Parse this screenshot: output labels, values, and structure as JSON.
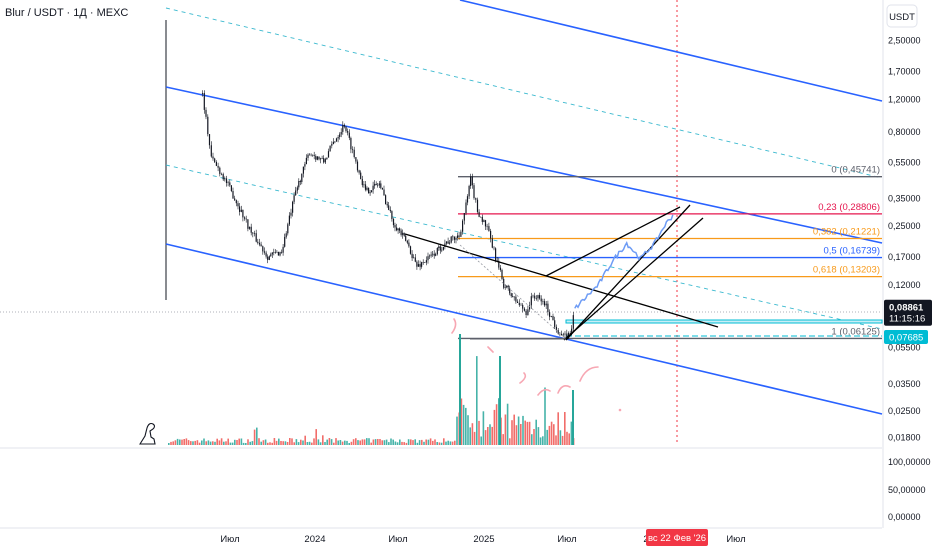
{
  "symbol": {
    "title": "Blur / USDT · 1Д · MEXC"
  },
  "price_axis": {
    "currency": "USDT",
    "ticks": [
      "2,50000",
      "1,70000",
      "1,20000",
      "0,80000",
      "0,55000",
      "0,35000",
      "0,25000",
      "0,17000",
      "0,12000",
      "0,05500",
      "0,03500",
      "0,02500",
      "0,01800"
    ],
    "current_price": "0,08861",
    "countdown": "11:15:16",
    "line_price": "0,07685"
  },
  "volume_axis": {
    "ticks": [
      "100,00000",
      "50,00000",
      "0,00000"
    ]
  },
  "time_axis": {
    "labels": [
      "Июл",
      "2024",
      "Июл",
      "2025",
      "Июл",
      "2",
      "Июл"
    ],
    "cursor_label": "вс 22 Фев '26"
  },
  "fib_levels": [
    {
      "label": "0 (0,45741)",
      "color": "#5d606b"
    },
    {
      "label": "0,23 (0,28806)",
      "color": "#e5164e"
    },
    {
      "label": "0,382 (0,21221)",
      "color": "#f89a1a"
    },
    {
      "label": "0,5 (0,16739)",
      "color": "#2962ff"
    },
    {
      "label": "0,618 (0,13203)",
      "color": "#f89a1a"
    },
    {
      "label": "1 (0,06125)",
      "color": "#5d606b"
    }
  ],
  "colors": {
    "channel": "#2962ff",
    "channel_mid": "#3bb9cf",
    "candles": "#131722",
    "projection": "#6e9cf5",
    "volume_up": "#26a69a",
    "volume_down": "#ef5350",
    "cursor_line": "#f23645",
    "annotation": "#f7a7b3",
    "current_price_tag": "#131722",
    "line_price_tag": "#00bcd4"
  },
  "chart_data": {
    "type": "candlestick",
    "title": "Blur / USDT · 1Д · MEXC",
    "y_scale": "log",
    "ylim": [
      0.016,
      3.2
    ],
    "x_range": [
      "2023-04",
      "2026-08"
    ],
    "close_series": [
      {
        "date": "2023-05-01",
        "value": 1.28
      },
      {
        "date": "2023-05-20",
        "value": 0.58
      },
      {
        "date": "2023-06-15",
        "value": 0.46
      },
      {
        "date": "2023-07-10",
        "value": 0.35
      },
      {
        "date": "2023-08-15",
        "value": 0.23
      },
      {
        "date": "2023-09-20",
        "value": 0.17
      },
      {
        "date": "2023-10-20",
        "value": 0.18
      },
      {
        "date": "2023-11-20",
        "value": 0.38
      },
      {
        "date": "2023-12-20",
        "value": 0.62
      },
      {
        "date": "2024-01-20",
        "value": 0.55
      },
      {
        "date": "2024-02-10",
        "value": 0.7
      },
      {
        "date": "2024-03-05",
        "value": 0.88
      },
      {
        "date": "2024-03-30",
        "value": 0.55
      },
      {
        "date": "2024-04-20",
        "value": 0.38
      },
      {
        "date": "2024-05-20",
        "value": 0.42
      },
      {
        "date": "2024-06-20",
        "value": 0.26
      },
      {
        "date": "2024-07-20",
        "value": 0.2
      },
      {
        "date": "2024-08-10",
        "value": 0.15
      },
      {
        "date": "2024-09-10",
        "value": 0.17
      },
      {
        "date": "2024-10-10",
        "value": 0.2
      },
      {
        "date": "2024-11-10",
        "value": 0.22
      },
      {
        "date": "2024-11-25",
        "value": 0.32
      },
      {
        "date": "2024-12-05",
        "value": 0.44
      },
      {
        "date": "2024-12-20",
        "value": 0.3
      },
      {
        "date": "2025-01-10",
        "value": 0.24
      },
      {
        "date": "2025-01-25",
        "value": 0.18
      },
      {
        "date": "2025-02-15",
        "value": 0.12
      },
      {
        "date": "2025-03-10",
        "value": 0.1
      },
      {
        "date": "2025-04-05",
        "value": 0.085
      },
      {
        "date": "2025-04-20",
        "value": 0.105
      },
      {
        "date": "2025-05-15",
        "value": 0.095
      },
      {
        "date": "2025-06-10",
        "value": 0.07
      },
      {
        "date": "2025-06-25",
        "value": 0.062
      },
      {
        "date": "2025-07-10",
        "value": 0.0645
      },
      {
        "date": "2025-07-20",
        "value": 0.0886
      }
    ],
    "projection": [
      {
        "date": "2025-07-20",
        "value": 0.0886
      },
      {
        "date": "2025-09-10",
        "value": 0.12
      },
      {
        "date": "2025-10-10",
        "value": 0.16
      },
      {
        "date": "2025-11-10",
        "value": 0.2
      },
      {
        "date": "2025-12-10",
        "value": 0.165
      },
      {
        "date": "2026-01-10",
        "value": 0.2
      },
      {
        "date": "2026-02-01",
        "value": 0.25
      },
      {
        "date": "2026-02-22",
        "value": 0.29
      }
    ],
    "fibonacci": [
      {
        "ratio": 0,
        "price": 0.45741
      },
      {
        "ratio": 0.23,
        "price": 0.28806
      },
      {
        "ratio": 0.382,
        "price": 0.21221
      },
      {
        "ratio": 0.5,
        "price": 0.16739
      },
      {
        "ratio": 0.618,
        "price": 0.13203
      },
      {
        "ratio": 1,
        "price": 0.06125
      }
    ],
    "price_lines": [
      {
        "label": "current",
        "price": 0.08861
      },
      {
        "label": "horizontal",
        "price": 0.07685
      }
    ],
    "annotations": [
      "вс 22 Фев '26"
    ]
  }
}
